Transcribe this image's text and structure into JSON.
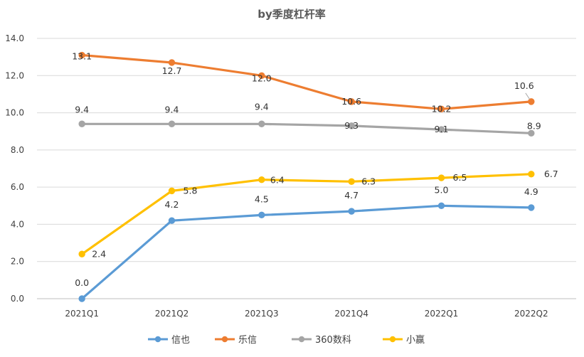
{
  "chart_data": {
    "type": "line",
    "title": "by季度杠杆率",
    "xlabel": "",
    "ylabel": "",
    "categories": [
      "2021Q1",
      "2021Q2",
      "2021Q3",
      "2021Q4",
      "2022Q1",
      "2022Q2"
    ],
    "ylim": [
      0,
      14
    ],
    "yticks": [
      "0.0",
      "2.0",
      "4.0",
      "6.0",
      "8.0",
      "10.0",
      "12.0",
      "14.0"
    ],
    "grid": true,
    "legend": "bottom",
    "series": [
      {
        "name": "信也",
        "color": "#5B9BD5",
        "values": [
          0.0,
          4.2,
          4.5,
          4.7,
          5.0,
          4.9
        ],
        "labels": [
          "0.0",
          "4.2",
          "4.5",
          "4.7",
          "5.0",
          "4.9"
        ]
      },
      {
        "name": "乐信",
        "color": "#ED7D31",
        "values": [
          13.1,
          12.7,
          12.0,
          10.6,
          10.2,
          10.6
        ],
        "labels": [
          "13.1",
          "12.7",
          "12.0",
          "10.6",
          "10.2",
          "10.6"
        ]
      },
      {
        "name": "360数科",
        "color": "#A5A5A5",
        "values": [
          9.4,
          9.4,
          9.4,
          9.3,
          9.1,
          8.9
        ],
        "labels": [
          "9.4",
          "9.4",
          "9.4",
          "9.3",
          "9.1",
          "8.9"
        ]
      },
      {
        "name": "小赢",
        "color": "#FFC000",
        "values": [
          2.4,
          5.8,
          6.4,
          6.3,
          6.5,
          6.7
        ],
        "labels": [
          "2.4",
          "5.8",
          "6.4",
          "6.3",
          "6.5",
          "6.7"
        ]
      }
    ]
  }
}
